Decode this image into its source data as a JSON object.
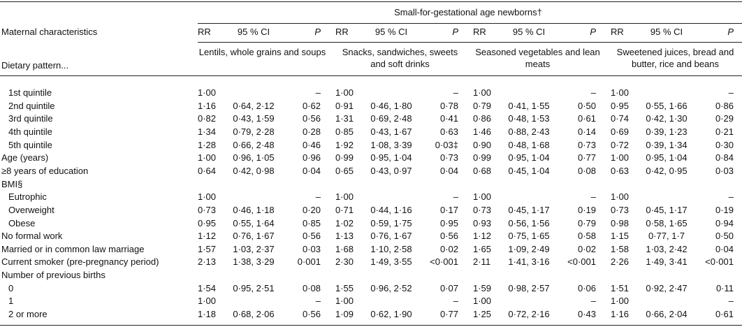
{
  "header": {
    "title": "Small-for-gestational age newborns†",
    "row_label": "Maternal characteristics",
    "sub_label": "Dietary pattern...",
    "columns": [
      "RR",
      "95 % CI",
      "P"
    ],
    "patterns": [
      "Lentils, whole grains and soups",
      "Snacks, sandwiches, sweets and soft drinks",
      "Seasoned vegetables and lean meats",
      "Sweetened juices, bread and butter, rice and beans"
    ]
  },
  "table": {
    "rows": [
      {
        "label": "1st quintile",
        "indent": true,
        "cells": [
          "1·00",
          null,
          "–",
          "1·00",
          null,
          "–",
          "1·00",
          null,
          "–",
          "1·00",
          null,
          "–"
        ]
      },
      {
        "label": "2nd quintile",
        "indent": true,
        "cells": [
          "1·16",
          "0·64, 2·12",
          "0·62",
          "0·91",
          "0·46, 1·80",
          "0·78",
          "0·79",
          "0·41, 1·55",
          "0·50",
          "0·95",
          "0·55, 1·66",
          "0·86"
        ]
      },
      {
        "label": "3rd quintile",
        "indent": true,
        "cells": [
          "0·82",
          "0·43, 1·59",
          "0·56",
          "1·31",
          "0·69, 2·48",
          "0·41",
          "0·86",
          "0·48, 1·53",
          "0·61",
          "0·74",
          "0·42, 1·30",
          "0·29"
        ]
      },
      {
        "label": "4th quintile",
        "indent": true,
        "cells": [
          "1·34",
          "0·79, 2·28",
          "0·28",
          "0·85",
          "0·43, 1·67",
          "0·63",
          "1·46",
          "0·88, 2·43",
          "0·14",
          "0·69",
          "0·39, 1·23",
          "0·21"
        ]
      },
      {
        "label": "5th quintile",
        "indent": true,
        "cells": [
          "1·28",
          "0·66, 2·48",
          "0·46",
          "1·92",
          "1·08, 3·39",
          "0·03‡",
          "0·90",
          "0·48, 1·68",
          "0·73",
          "0·72",
          "0·39, 1·34",
          "0·30"
        ]
      },
      {
        "label": "Age (years)",
        "indent": false,
        "cells": [
          "1·00",
          "0·96, 1·05",
          "0·96",
          "0·99",
          "0·95, 1·04",
          "0·73",
          "0·99",
          "0·95, 1·04",
          "0·77",
          "1·00",
          "0·95, 1·04",
          "0·84"
        ]
      },
      {
        "label": "≥8 years of education",
        "indent": false,
        "cells": [
          "0·64",
          "0·42, 0·98",
          "0·04",
          "0·65",
          "0·43, 0·97",
          "0·04",
          "0·68",
          "0·45, 1·04",
          "0·08",
          "0·63",
          "0·42, 0·95",
          "0·03"
        ]
      },
      {
        "label": "BMI§",
        "indent": false,
        "cells": []
      },
      {
        "label": "Eutrophic",
        "indent": true,
        "cells": [
          "1·00",
          null,
          "–",
          "1·00",
          null,
          "–",
          "1·00",
          null,
          "–",
          "1·00",
          null,
          "–"
        ]
      },
      {
        "label": "Overweight",
        "indent": true,
        "cells": [
          "0·73",
          "0·46, 1·18",
          "0·20",
          "0·71",
          "0·44, 1·16",
          "0·17",
          "0·73",
          "0·45, 1·17",
          "0·19",
          "0·73",
          "0·45, 1·17",
          "0·19"
        ]
      },
      {
        "label": "Obese",
        "indent": true,
        "cells": [
          "0·95",
          "0·55, 1·64",
          "0·85",
          "1·02",
          "0·59, 1·75",
          "0·95",
          "0·93",
          "0·56, 1·56",
          "0·79",
          "0·98",
          "0·58, 1·65",
          "0·94"
        ]
      },
      {
        "label": "No formal work",
        "indent": false,
        "cells": [
          "1·12",
          "0·76, 1·67",
          "0·56",
          "1·13",
          "0·76, 1·67",
          "0·56",
          "1·12",
          "0·75, 1·65",
          "0·58",
          "1·15",
          "0·77, 1·7",
          "0·50"
        ]
      },
      {
        "label": "Married or in common law marriage",
        "indent": false,
        "cells": [
          "1·57",
          "1·03, 2·37",
          "0·03",
          "1·68",
          "1·10, 2·58",
          "0·02",
          "1·65",
          "1·09, 2·49",
          "0·02",
          "1·58",
          "1·03, 2·42",
          "0·04"
        ]
      },
      {
        "label": "Current smoker (pre-pregnancy period)",
        "indent": false,
        "cells": [
          "2·13",
          "1·38, 3·29",
          "0·001",
          "2·30",
          "1·49, 3·55",
          "<0·001",
          "2·11",
          "1·41, 3·16",
          "<0·001",
          "2·26",
          "1·49, 3·41",
          "<0·001"
        ]
      },
      {
        "label": "Number of previous births",
        "indent": false,
        "cells": []
      },
      {
        "label": "0",
        "indent": true,
        "cells": [
          "1·54",
          "0·95, 2·51",
          "0·08",
          "1·55",
          "0·96, 2·52",
          "0·07",
          "1·59",
          "0·98, 2·57",
          "0·06",
          "1·51",
          "0·92, 2·47",
          "0·11"
        ]
      },
      {
        "label": "1",
        "indent": true,
        "cells": [
          "1·00",
          null,
          "–",
          "1·00",
          null,
          "–",
          "1·00",
          null,
          "–",
          "1·00",
          null,
          "–"
        ]
      },
      {
        "label": "2 or more",
        "indent": true,
        "cells": [
          "1·18",
          "0·68, 2·06",
          "0·56",
          "1·09",
          "0·62, 1·90",
          "0·77",
          "1·25",
          "0·72, 2·16",
          "0·43",
          "1·16",
          "0·66, 2·04",
          "0·61"
        ]
      }
    ]
  }
}
